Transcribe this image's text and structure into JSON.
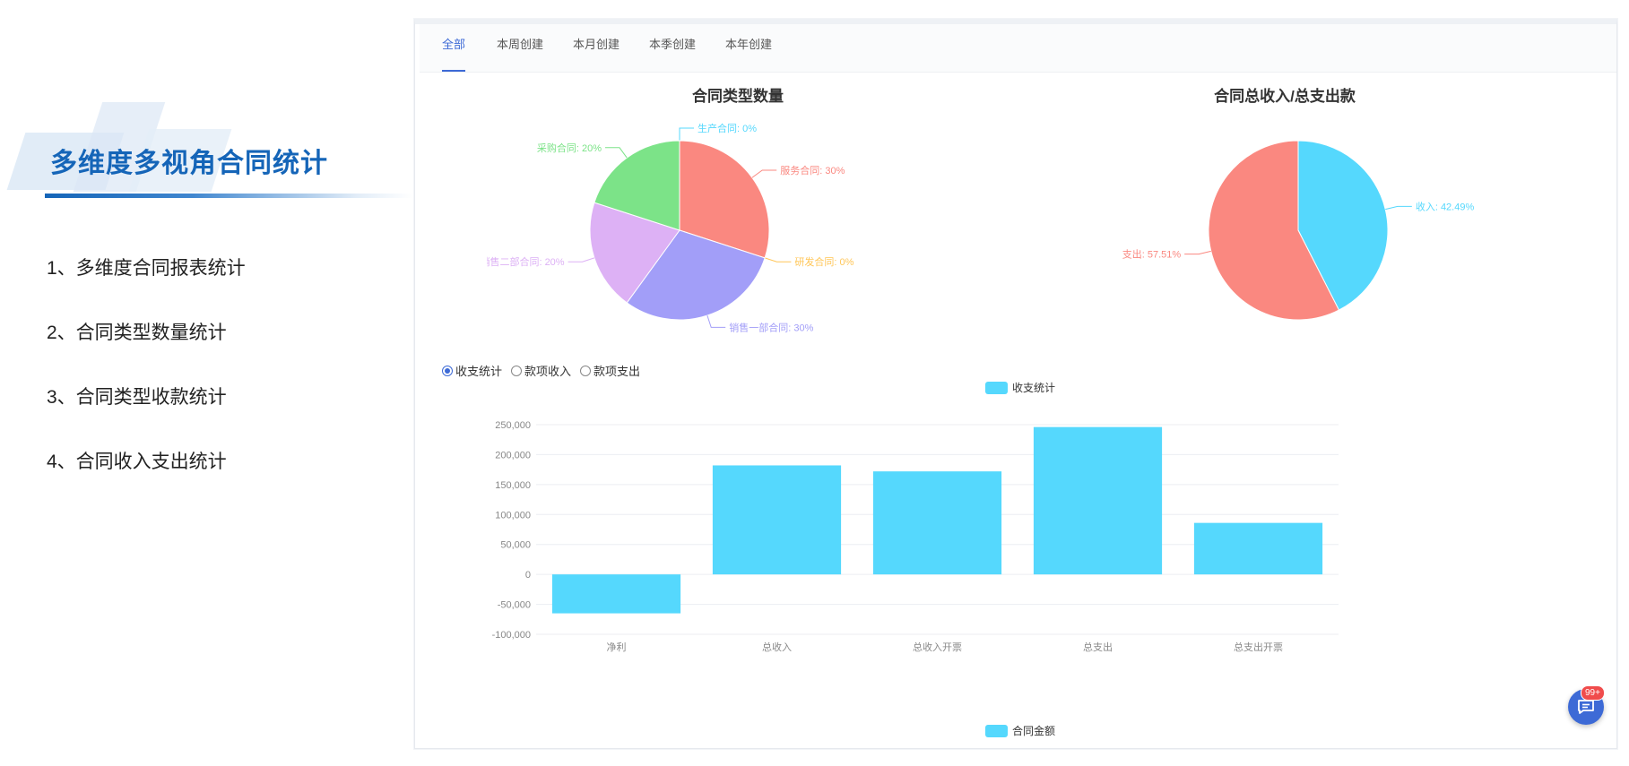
{
  "slide": {
    "title": "多维度多视角合同统计",
    "features": [
      "1、多维度合同报表统计",
      "2、合同类型数量统计",
      "3、合同类型收款统计",
      "4、合同收入支出统计"
    ]
  },
  "tabs": [
    {
      "label": "全部",
      "active": true
    },
    {
      "label": "本周创建",
      "active": false
    },
    {
      "label": "本月创建",
      "active": false
    },
    {
      "label": "本季创建",
      "active": false
    },
    {
      "label": "本年创建",
      "active": false
    }
  ],
  "chart_data": [
    {
      "type": "pie",
      "title": "合同类型数量",
      "slices": [
        {
          "label": "生产合同: 0%",
          "value": 0,
          "color": "#55d8fd"
        },
        {
          "label": "服务合同: 30%",
          "value": 30,
          "color": "#fa8880"
        },
        {
          "label": "研发合同: 0%",
          "value": 0,
          "color": "#ffc658"
        },
        {
          "label": "销售一部合同: 30%",
          "value": 30,
          "color": "#a29ef8"
        },
        {
          "label": "销售二部合同: 20%",
          "value": 20,
          "color": "#ddb1f5"
        },
        {
          "label": "采购合同: 20%",
          "value": 20,
          "color": "#7ce388"
        }
      ]
    },
    {
      "type": "pie",
      "title": "合同总收入/总支出款",
      "slices": [
        {
          "label": "收入: 42.49%",
          "value": 42.49,
          "color": "#55d8fd"
        },
        {
          "label": "支出: 57.51%",
          "value": 57.51,
          "color": "#fa8880"
        }
      ]
    },
    {
      "type": "bar",
      "categories": [
        "净利",
        "总收入",
        "总收入开票",
        "总支出",
        "总支出开票"
      ],
      "series": [
        {
          "name": "收支统计",
          "values": [
            -65000,
            182000,
            172000,
            246000,
            86000
          ],
          "color": "#55d8fd"
        }
      ],
      "ylim": [
        -100000,
        250000
      ],
      "yticks": [
        "250,000",
        "200,000",
        "150,000",
        "100,000",
        "50,000",
        "0",
        "-50,000",
        "-100,000"
      ],
      "top_legend": "收支统计",
      "bottom_legend": "合同金额"
    }
  ],
  "radios": [
    {
      "label": "收支统计",
      "checked": true
    },
    {
      "label": "款项收入",
      "checked": false
    },
    {
      "label": "款项支出",
      "checked": false
    }
  ],
  "chat": {
    "badge": "99+",
    "icon": "chat-icon"
  }
}
